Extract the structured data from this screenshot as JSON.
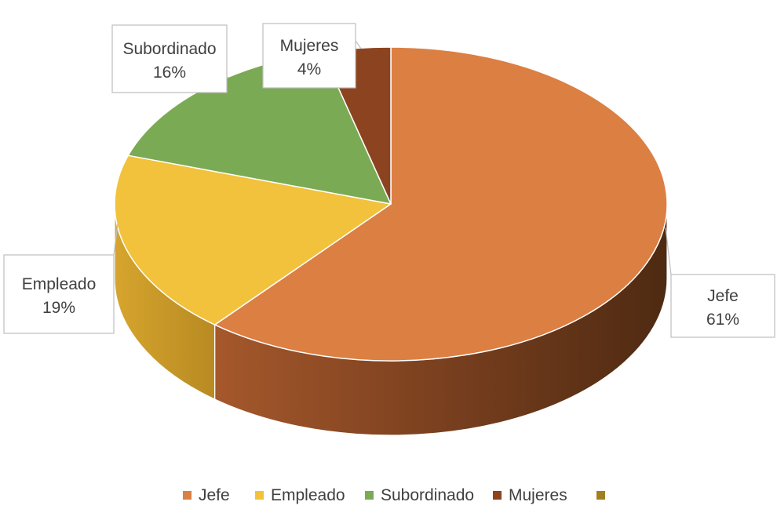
{
  "chart_data": {
    "type": "pie",
    "style": "3d",
    "title": "",
    "categories": [
      "Jefe",
      "Empleado",
      "Subordinado",
      "Mujeres",
      ""
    ],
    "values": [
      61,
      19,
      16,
      4,
      0
    ],
    "labels": [
      "61%",
      "19%",
      "16%",
      "4%",
      ""
    ],
    "colors": [
      "#DB7F43",
      "#F2C23C",
      "#7BAA55",
      "#8C4420",
      "#A08020"
    ],
    "legend_position": "bottom",
    "data_labels": "callouts"
  }
}
